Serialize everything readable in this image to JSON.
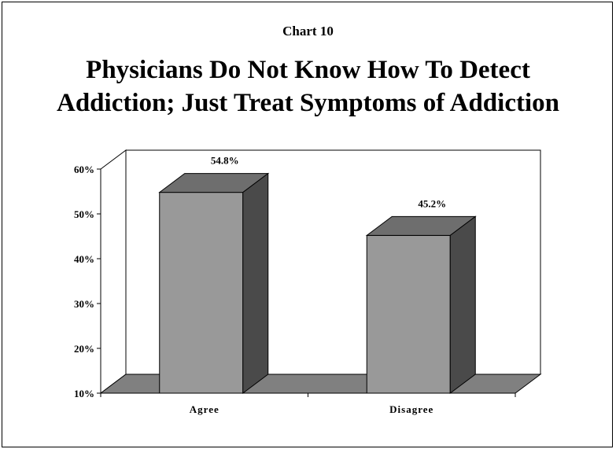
{
  "header": {
    "chart_number": "Chart 10",
    "title_line1": "Physicians Do Not Know How To Detect",
    "title_line2": "Addiction; Just Treat Symptoms of Addiction"
  },
  "chart_data": {
    "type": "bar",
    "style": "3d",
    "title": "Physicians Do Not Know How To Detect Addiction; Just Treat Symptoms of Addiction",
    "categories": [
      "Agree",
      "Disagree"
    ],
    "values": [
      54.8,
      45.2
    ],
    "data_labels": [
      "54.8%",
      "45.2%"
    ],
    "ylim": [
      10,
      60
    ],
    "yticks": [
      10,
      20,
      30,
      40,
      50,
      60
    ],
    "ytick_labels": [
      "10%",
      "20%",
      "30%",
      "40%",
      "50%",
      "60%"
    ],
    "xlabel": "",
    "ylabel": "",
    "grid": false,
    "legend": "none",
    "colors": {
      "front": "#999999",
      "top": "#6e6e6e",
      "side": "#4a4a4a",
      "floor": "#808080"
    }
  }
}
